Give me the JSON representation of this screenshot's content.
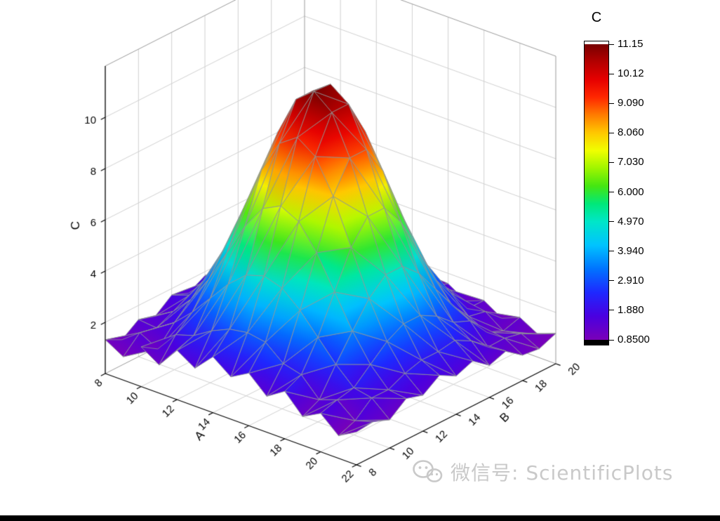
{
  "figure": {
    "background": "#ffffff",
    "bottom_bar_color": "#000000",
    "watermark": {
      "icon": "wechat-logo",
      "text": "微信号: ScientificPlots",
      "color": "#c9c9c9"
    }
  },
  "chart_data": {
    "type": "surface",
    "title": "",
    "axes": {
      "x": {
        "label": "A",
        "min": 8,
        "max": 22,
        "ticks": [
          8,
          10,
          12,
          14,
          16,
          18,
          20,
          22
        ]
      },
      "y": {
        "label": "B",
        "min": 8,
        "max": 20,
        "ticks": [
          8,
          10,
          12,
          14,
          16,
          18,
          20
        ]
      },
      "z": {
        "label": "C",
        "min": 0,
        "max": 12,
        "ticks": [
          2,
          4,
          6,
          8,
          10
        ]
      }
    },
    "x": [
      8,
      9,
      10,
      11,
      12,
      13,
      14,
      15,
      16,
      17,
      18,
      19,
      20,
      21,
      22
    ],
    "y": [
      8,
      9,
      10,
      11,
      12,
      13,
      14,
      15,
      16,
      17,
      18,
      19,
      20
    ],
    "z": [
      [
        1.32,
        0.91,
        1.55,
        1.1,
        1.92,
        1.48,
        2.18,
        1.65,
        2.05,
        1.4,
        1.85,
        1.12,
        1.5,
        0.88,
        1.28
      ],
      [
        0.99,
        1.52,
        1.14,
        1.95,
        2.17,
        2.61,
        2.93,
        3.05,
        2.93,
        2.35,
        2.17,
        1.45,
        1.7,
        1.14,
        1.35
      ],
      [
        1.45,
        1.38,
        1.84,
        2.5,
        3.3,
        4.1,
        4.71,
        4.93,
        4.71,
        4.1,
        3.3,
        2.5,
        1.84,
        1.7,
        1.1
      ],
      [
        1.25,
        1.69,
        2.42,
        3.47,
        4.74,
        6.02,
        6.98,
        7.33,
        6.98,
        6.02,
        4.74,
        3.47,
        2.42,
        1.69,
        1.6
      ],
      [
        1.75,
        2.0,
        2.99,
        4.41,
        6.15,
        7.89,
        9.19,
        9.68,
        9.19,
        7.89,
        6.15,
        4.41,
        2.99,
        2.0,
        1.4
      ],
      [
        1.49,
        2.19,
        3.35,
        5.01,
        7.03,
        9.06,
        10.58,
        11.15,
        10.58,
        9.06,
        7.03,
        5.01,
        3.35,
        2.19,
        1.85
      ],
      [
        1.85,
        2.19,
        3.35,
        5.01,
        7.03,
        9.06,
        10.58,
        11.1,
        10.58,
        9.06,
        7.03,
        5.01,
        3.35,
        2.19,
        1.49
      ],
      [
        1.4,
        2.35,
        2.99,
        4.41,
        6.15,
        7.89,
        9.19,
        9.68,
        9.19,
        7.89,
        6.15,
        4.41,
        2.99,
        2.3,
        1.75
      ],
      [
        1.6,
        1.69,
        2.42,
        3.47,
        4.74,
        6.02,
        6.98,
        7.33,
        6.98,
        6.02,
        4.74,
        3.47,
        2.42,
        1.95,
        1.25
      ],
      [
        1.1,
        1.62,
        1.84,
        2.5,
        3.3,
        4.1,
        4.71,
        4.93,
        4.71,
        4.1,
        3.3,
        2.5,
        2.15,
        1.38,
        1.48
      ],
      [
        1.3,
        0.99,
        1.68,
        1.74,
        2.17,
        2.61,
        2.93,
        3.05,
        2.93,
        2.61,
        2.4,
        1.74,
        1.38,
        1.4,
        0.99
      ],
      [
        0.91,
        1.42,
        1.1,
        1.72,
        1.46,
        2.05,
        1.81,
        2.25,
        1.81,
        1.95,
        1.46,
        1.6,
        1.1,
        1.25,
        0.91
      ],
      [
        1.2,
        0.9,
        1.35,
        1.01,
        1.52,
        1.17,
        1.68,
        1.25,
        1.6,
        1.17,
        1.45,
        1.01,
        1.3,
        0.9,
        1.18
      ]
    ],
    "zlim": [
      0.85,
      11.15
    ],
    "colormap": [
      [
        0.0,
        "#7A00B8"
      ],
      [
        0.08,
        "#4A00E0"
      ],
      [
        0.16,
        "#1E28FF"
      ],
      [
        0.24,
        "#0073FF"
      ],
      [
        0.32,
        "#00C3FF"
      ],
      [
        0.4,
        "#00E6C8"
      ],
      [
        0.46,
        "#00E87A"
      ],
      [
        0.52,
        "#44E611"
      ],
      [
        0.58,
        "#9EF500"
      ],
      [
        0.64,
        "#F0FF00"
      ],
      [
        0.7,
        "#FFC800"
      ],
      [
        0.76,
        "#FF7D00"
      ],
      [
        0.82,
        "#FF2800"
      ],
      [
        0.88,
        "#E60000"
      ],
      [
        0.94,
        "#B40000"
      ],
      [
        1.0,
        "#780000"
      ]
    ],
    "mesh_color": "#8f9496",
    "grid_color": "#d0d0d0",
    "axis_color": "#000000",
    "legend_position": "right"
  },
  "colorbar": {
    "title": "C",
    "above_range_color": "#ffffff",
    "below_range_color": "#000000",
    "ticks": [
      {
        "label": "11.15",
        "value": 11.15
      },
      {
        "label": "10.12",
        "value": 10.12
      },
      {
        "label": "9.090",
        "value": 9.09
      },
      {
        "label": "8.060",
        "value": 8.06
      },
      {
        "label": "7.030",
        "value": 7.03
      },
      {
        "label": "6.000",
        "value": 6.0
      },
      {
        "label": "4.970",
        "value": 4.97
      },
      {
        "label": "3.940",
        "value": 3.94
      },
      {
        "label": "2.910",
        "value": 2.91
      },
      {
        "label": "1.880",
        "value": 1.88
      },
      {
        "label": "0.8500",
        "value": 0.85
      }
    ]
  }
}
